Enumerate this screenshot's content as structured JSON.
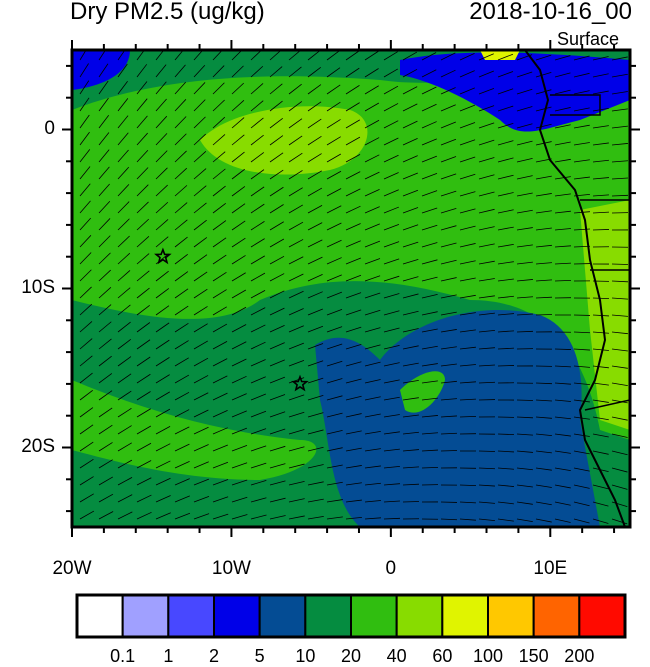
{
  "title_left": "Dry PM2.5 (ug/kg)",
  "title_right": "2018-10-16_00",
  "level_label": "Surface",
  "map": {
    "lon_range": [
      -20,
      15
    ],
    "lat_range": [
      -25,
      5
    ],
    "x_ticks": [
      {
        "value": -20,
        "label": "20W"
      },
      {
        "value": -10,
        "label": "10W"
      },
      {
        "value": 0,
        "label": "0"
      },
      {
        "value": 10,
        "label": "10E"
      }
    ],
    "y_ticks": [
      {
        "value": 0,
        "label": "0"
      },
      {
        "value": -10,
        "label": "10S"
      },
      {
        "value": -20,
        "label": "20S"
      }
    ],
    "markers": [
      {
        "type": "star",
        "lon": -14.3,
        "lat": -8.0
      },
      {
        "type": "star",
        "lon": -5.7,
        "lat": -16.0
      }
    ],
    "overlay": "wind barbs"
  },
  "colorbar": {
    "colors": [
      "#ffffff",
      "#a0a0ff",
      "#4848ff",
      "#0000e8",
      "#044c94",
      "#058c40",
      "#30be10",
      "#88dc00",
      "#e0f400",
      "#ffc800",
      "#ff6400",
      "#ff0a00"
    ],
    "labels": [
      "0.1",
      "1",
      "2",
      "5",
      "10",
      "20",
      "40",
      "60",
      "100",
      "150",
      "200"
    ]
  }
}
